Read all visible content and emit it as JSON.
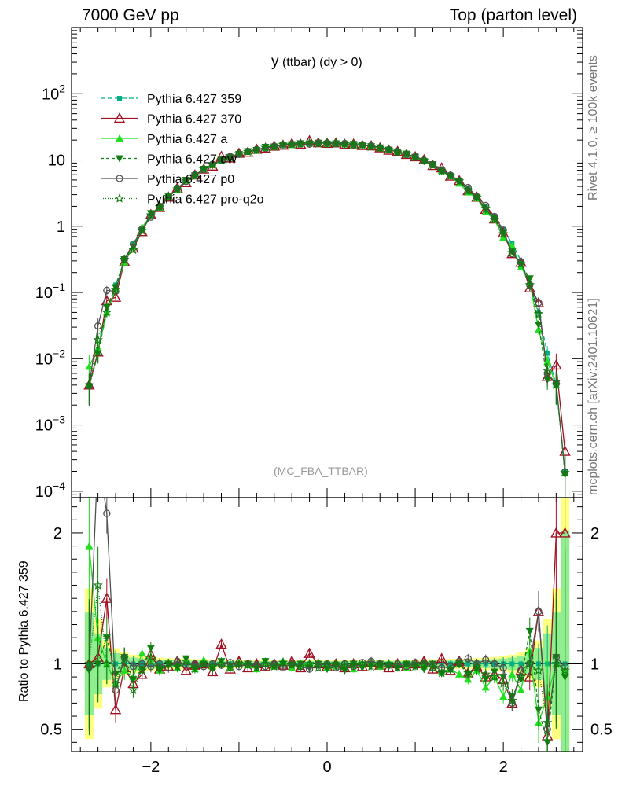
{
  "header": {
    "energy": "7000 GeV pp",
    "process": "Top (parton level)"
  },
  "side": {
    "rivet": "Rivet 4.1.0, ≥ 100k events",
    "mcplots": "mcplots.cern.ch [arXiv:2401.10621]"
  },
  "plot_title": {
    "main": "y",
    "detail": " (ttbar) (dy > 0)"
  },
  "analysis_name": "(MC_FBA_TTBAR)",
  "ratio_ylabel": "Ratio to Pythia 6.427 359",
  "chart_data": {
    "type": "line",
    "title": "y (ttbar) (dy > 0)",
    "xlabel": "",
    "ylabel": "",
    "xlim": [
      -2.9,
      2.9
    ],
    "ylim": [
      8e-05,
      1000
    ],
    "yscale": "log",
    "main_yticks": [
      {
        "v": 0.0001,
        "b": "10",
        "e": "−4"
      },
      {
        "v": 0.001,
        "b": "10",
        "e": "−3"
      },
      {
        "v": 0.01,
        "b": "10",
        "e": "−2"
      },
      {
        "v": 0.1,
        "b": "10",
        "e": "−1"
      },
      {
        "v": 1,
        "b": "1",
        "e": ""
      },
      {
        "v": 10,
        "b": "10",
        "e": ""
      },
      {
        "v": 100,
        "b": "10",
        "e": "2"
      }
    ],
    "xticks": [
      {
        "v": -2,
        "label": "−2"
      },
      {
        "v": 0,
        "label": "0"
      },
      {
        "v": 2,
        "label": "2"
      }
    ],
    "ratio_ylim": [
      0.33,
      2.27
    ],
    "ratio_yticks": [
      {
        "v": 0.5,
        "label": "0.5"
      },
      {
        "v": 1,
        "label": "1"
      },
      {
        "v": 2,
        "label": "2"
      }
    ],
    "x": [
      -2.7,
      -2.6,
      -2.5,
      -2.4,
      -2.3,
      -2.2,
      -2.1,
      -2.0,
      -1.9,
      -1.8,
      -1.7,
      -1.6,
      -1.5,
      -1.4,
      -1.3,
      -1.2,
      -1.1,
      -1.0,
      -0.9,
      -0.8,
      -0.7,
      -0.6,
      -0.5,
      -0.4,
      -0.3,
      -0.2,
      -0.1,
      0.0,
      0.1,
      0.2,
      0.3,
      0.4,
      0.5,
      0.6,
      0.7,
      0.8,
      0.9,
      1.0,
      1.1,
      1.2,
      1.3,
      1.4,
      1.5,
      1.6,
      1.7,
      1.8,
      1.9,
      2.0,
      2.1,
      2.2,
      2.3,
      2.4,
      2.5,
      2.6,
      2.7
    ],
    "reference": [
      0.004,
      0.012,
      0.05,
      0.13,
      0.3,
      0.55,
      0.9,
      1.4,
      2.0,
      2.8,
      3.7,
      4.8,
      6.0,
      7.3,
      8.6,
      9.9,
      11.2,
      12.4,
      13.5,
      14.5,
      15.4,
      16.2,
      16.9,
      17.4,
      17.8,
      18.1,
      18.2,
      18.2,
      18.1,
      17.8,
      17.4,
      16.9,
      16.2,
      15.4,
      14.5,
      13.5,
      12.4,
      11.2,
      9.9,
      8.6,
      7.3,
      6.0,
      4.8,
      3.7,
      2.8,
      2.0,
      1.4,
      0.9,
      0.55,
      0.3,
      0.13,
      0.05,
      0.012,
      0.004,
      0.0002
    ],
    "series": [
      {
        "name": "Pythia 6.427 359",
        "color": "#00b080",
        "marker": "square",
        "dash": "6,3",
        "ratio": [
          1.0,
          1.0,
          1.0,
          1.0,
          1.0,
          1.0,
          1.0,
          1.0,
          1.0,
          1.0,
          1.0,
          1.0,
          1.0,
          1.0,
          1.0,
          1.0,
          1.0,
          1.0,
          1.0,
          1.0,
          1.0,
          1.0,
          1.0,
          1.0,
          1.0,
          1.0,
          1.0,
          1.0,
          1.0,
          1.0,
          1.0,
          1.0,
          1.0,
          1.0,
          1.0,
          1.0,
          1.0,
          1.0,
          1.0,
          1.0,
          1.0,
          1.0,
          1.0,
          1.0,
          1.0,
          1.0,
          1.0,
          1.0,
          1.0,
          1.0,
          1.0,
          1.0,
          1.0,
          1.0,
          1.0
        ]
      },
      {
        "name": "Pythia 6.427 370",
        "color": "#a01020",
        "marker": "triangle-open",
        "dash": "",
        "ratio": [
          1.0,
          1.05,
          1.5,
          0.65,
          0.97,
          0.85,
          0.92,
          1.07,
          0.96,
          0.98,
          1.02,
          0.95,
          0.99,
          1.0,
          0.94,
          1.15,
          0.96,
          1.02,
          0.97,
          1.0,
          0.98,
          1.0,
          0.99,
          1.02,
          0.97,
          1.08,
          1.0,
          0.98,
          1.0,
          0.97,
          1.0,
          0.98,
          1.01,
          0.99,
          0.97,
          1.0,
          0.98,
          1.0,
          1.02,
          0.96,
          1.04,
          0.95,
          1.02,
          0.93,
          0.98,
          0.9,
          0.92,
          0.88,
          0.7,
          0.95,
          0.9,
          1.4,
          0.45,
          2.0,
          2.0
        ]
      },
      {
        "name": "Pythia 6.427 a",
        "color": "#20e020",
        "marker": "triangle",
        "dash": "",
        "ratio": [
          1.9,
          1.2,
          1.0,
          0.85,
          0.95,
          0.9,
          1.08,
          1.02,
          0.95,
          1.0,
          0.97,
          1.02,
          0.96,
          1.03,
          0.98,
          1.0,
          0.97,
          1.01,
          0.99,
          0.96,
          1.0,
          0.98,
          1.02,
          0.97,
          0.99,
          1.0,
          1.01,
          0.97,
          0.98,
          1.0,
          0.96,
          1.0,
          1.02,
          0.98,
          0.99,
          1.0,
          0.97,
          1.0,
          0.98,
          1.0,
          0.94,
          0.96,
          0.92,
          0.88,
          0.95,
          0.82,
          0.9,
          0.75,
          0.92,
          0.8,
          1.1,
          0.55,
          0.75,
          1.0,
          0.95
        ]
      },
      {
        "name": "Pythia 6.427 dw",
        "color": "#108010",
        "marker": "triangle-down",
        "dash": "4,3",
        "ratio": [
          0.95,
          1.0,
          1.2,
          0.92,
          1.05,
          0.88,
          0.96,
          1.12,
          0.95,
          1.0,
          0.98,
          1.04,
          0.97,
          1.0,
          0.96,
          1.02,
          0.98,
          0.99,
          1.0,
          0.97,
          1.02,
          0.98,
          1.0,
          0.99,
          1.0,
          0.97,
          1.0,
          0.96,
          0.98,
          0.95,
          1.0,
          0.97,
          0.99,
          1.0,
          0.98,
          0.97,
          1.0,
          0.99,
          0.96,
          1.0,
          0.93,
          0.95,
          1.0,
          0.92,
          0.96,
          0.88,
          0.94,
          0.9,
          0.75,
          0.88,
          1.25,
          0.65,
          0.4,
          1.05,
          0.9
        ]
      },
      {
        "name": "Pythia 6.427 p0",
        "color": "#505050",
        "marker": "circle-open",
        "dash": "",
        "ratio": [
          0.98,
          2.6,
          2.15,
          0.8,
          1.05,
          0.98,
          1.0,
          0.98,
          1.0,
          0.97,
          1.02,
          0.99,
          1.0,
          0.98,
          1.0,
          0.99,
          1.01,
          0.98,
          1.0,
          0.99,
          0.98,
          1.0,
          0.97,
          1.0,
          0.98,
          0.96,
          0.99,
          1.0,
          0.97,
          1.0,
          0.98,
          1.01,
          1.02,
          1.0,
          0.99,
          1.0,
          0.98,
          1.01,
          1.0,
          0.99,
          0.97,
          0.98,
          1.02,
          1.04,
          1.0,
          1.03,
          1.0,
          0.97,
          0.7,
          0.95,
          1.0,
          1.4,
          0.5,
          1.05,
          0.98
        ]
      },
      {
        "name": "Pythia 6.427 pro-q2o",
        "color": "#107a10",
        "marker": "star",
        "dash": "1,2",
        "ratio": [
          1.0,
          1.6,
          1.0,
          0.85,
          1.05,
          0.8,
          0.95,
          1.05,
          0.97,
          1.0,
          0.98,
          1.02,
          0.96,
          1.0,
          0.98,
          1.0,
          0.97,
          1.0,
          0.99,
          0.97,
          1.0,
          0.98,
          1.01,
          0.99,
          0.98,
          1.0,
          0.97,
          0.99,
          1.0,
          0.98,
          0.99,
          1.0,
          0.98,
          0.99,
          1.0,
          0.97,
          1.0,
          0.98,
          1.0,
          0.97,
          0.93,
          0.96,
          1.0,
          0.93,
          0.98,
          0.92,
          0.9,
          0.85,
          0.72,
          0.9,
          1.0,
          0.95,
          0.55,
          1.0,
          0.95
        ]
      }
    ]
  }
}
